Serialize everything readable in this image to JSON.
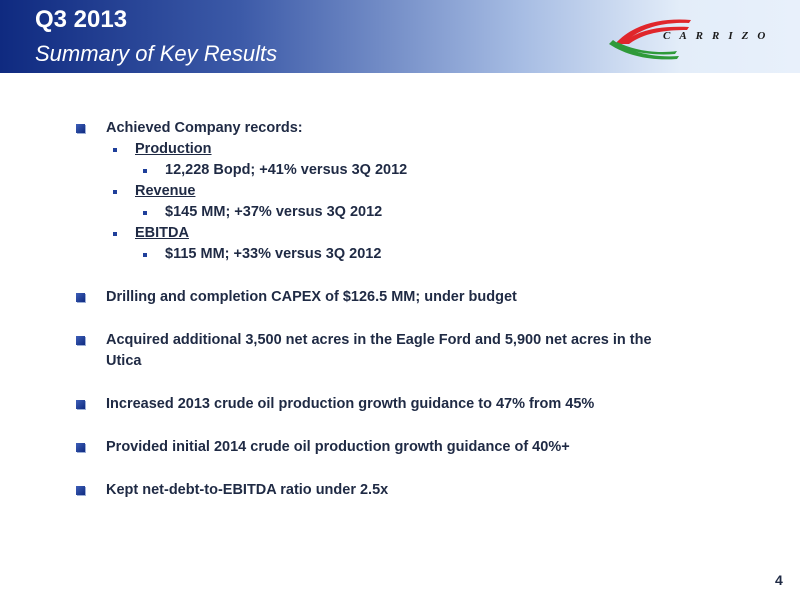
{
  "header": {
    "title": "Q3 2013",
    "subtitle": "Summary of Key Results",
    "logo_text": "CARRIZO",
    "colors": {
      "dark_blue": "#0f2a80",
      "logo_red": "#e0262b",
      "logo_green": "#2f9a3a"
    }
  },
  "bullets": {
    "records": {
      "label": "Achieved Company records:",
      "production": {
        "label": "Production",
        "detail": "12,228 Bopd; +41% versus 3Q 2012"
      },
      "revenue": {
        "label": "Revenue",
        "detail": "$145 MM; +37% versus 3Q 2012"
      },
      "ebitda": {
        "label": "EBITDA",
        "detail": "$115 MM; +33% versus 3Q 2012"
      }
    },
    "capex": "Drilling and completion CAPEX of $126.5 MM; under budget",
    "acquired_line1": "Acquired additional 3,500 net acres in the Eagle Ford and 5,900 net acres in the",
    "acquired_line2": "Utica",
    "guidance_2013": "Increased 2013 crude oil production growth guidance to 47% from 45%",
    "guidance_2014": "Provided initial 2014 crude oil production growth guidance of 40%+",
    "debt_ratio": "Kept net-debt-to-EBITDA ratio under 2.5x"
  },
  "footer": {
    "page_number": "4"
  }
}
